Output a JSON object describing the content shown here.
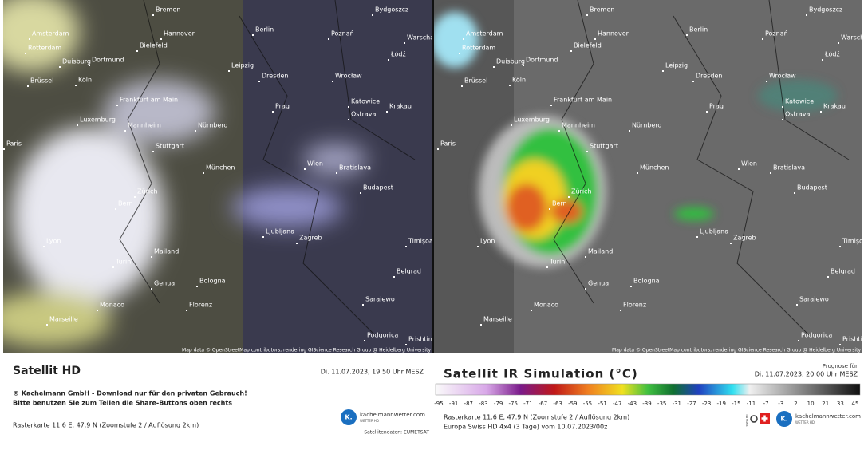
{
  "cities": [
    "Bremen",
    "Bydgoszcz",
    "Amsterdam",
    "Hannover",
    "Berlin",
    "Poznań",
    "Warscha",
    "Rotterdam",
    "Bielefeld",
    "Łódź",
    "Duisburg",
    "Dortmund",
    "Leipzig",
    "Brüssel",
    "Köln",
    "Dresden",
    "Wrocław",
    "Frankfurt am Main",
    "Katowice",
    "Krakau",
    "Prag",
    "Ostrava",
    "Luxemburg",
    "Mannheim",
    "Nürnberg",
    "Paris",
    "Stuttgart",
    "München",
    "Wien",
    "Bratislava",
    "Budapest",
    "Zürich",
    "Bern",
    "Ljubljana",
    "Zagreb",
    "Timișoa",
    "Lyon",
    "Mailand",
    "Turin",
    "Belgrad",
    "Genua",
    "Bologna",
    "Monaco",
    "Florenz",
    "Sarajewo",
    "Marseille",
    "Podgorica",
    "Prishtin"
  ],
  "attribution": "Map data © OpenStreetMap contributors, rendering GIScience Research Group @ Heidelberg University",
  "logo": "kachelmannwetter.com",
  "logo_sub": "WETTER HD",
  "logo_letter": "K.",
  "raster": "Rasterkarte 11.6 E, 47.9 N (Zoomstufe 2 / Auflösung 2km)",
  "left": {
    "title": "Satellit HD",
    "datetime": "Di. 11.07.2023, 19:50 Uhr MESZ",
    "copyright": [
      "© Kachelmann GmbH - Download nur für den privaten Gebrauch!",
      "Bitte benutzen Sie zum Teilen die Share-Buttons oben rechts"
    ],
    "source": "Satellitendaten: EUMETSAT"
  },
  "right": {
    "title": "Satellit IR Simulation (°C)",
    "forecast_label": "Prognose für",
    "datetime": "Di. 11.07.2023, 20:00 Uhr MESZ",
    "colorbar_ticks": [
      -95,
      -91,
      -87,
      -83,
      -79,
      -75,
      -71,
      -67,
      -63,
      -59,
      -55,
      -51,
      -47,
      -43,
      -39,
      -35,
      -31,
      -27,
      -23,
      -19,
      -15,
      -11,
      -7,
      -3,
      2,
      10,
      21,
      33,
      45
    ],
    "model": "Europa Swiss HD 4x4 (3 Tage) vom 10.07.2023/00z",
    "swiss_label": "SWISS HD"
  }
}
